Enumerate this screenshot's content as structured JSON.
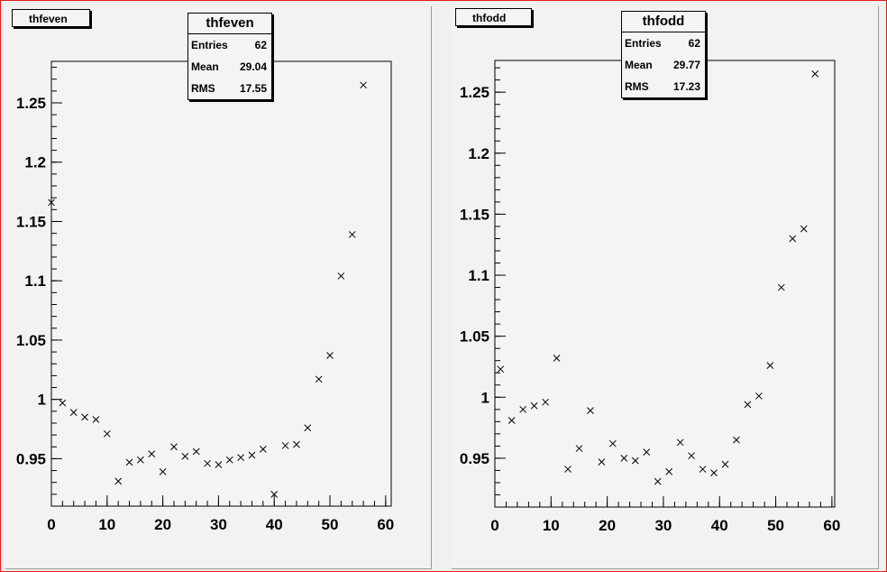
{
  "panels": [
    {
      "id": "thfeven",
      "title": "thfeven",
      "stats": {
        "name": "thfeven",
        "rows": [
          {
            "key": "Entries",
            "value": "62"
          },
          {
            "key": "Mean",
            "value": "29.04"
          },
          {
            "key": "RMS",
            "value": "17.55"
          }
        ]
      }
    },
    {
      "id": "thfodd",
      "title": "thfodd",
      "stats": {
        "name": "thfodd",
        "rows": [
          {
            "key": "Entries",
            "value": "62"
          },
          {
            "key": "Mean",
            "value": "29.77"
          },
          {
            "key": "RMS",
            "value": "17.23"
          }
        ]
      }
    }
  ],
  "chart_data": [
    {
      "type": "scatter",
      "title": "thfeven",
      "marker": "x",
      "xlim": [
        0,
        61
      ],
      "ylim": [
        0.91,
        1.285
      ],
      "xticks": [
        0,
        10,
        20,
        30,
        40,
        50,
        60
      ],
      "xtick_labels": [
        "0",
        "10",
        "20",
        "30",
        "40",
        "50",
        "60"
      ],
      "yticks": [
        0.95,
        1.0,
        1.05,
        1.1,
        1.15,
        1.2,
        1.25
      ],
      "ytick_labels": [
        "0.95",
        "1",
        "1.05",
        "1.1",
        "1.15",
        "1.2",
        "1.25"
      ],
      "grid": false,
      "x": [
        0,
        2,
        4,
        6,
        8,
        10,
        12,
        14,
        16,
        18,
        20,
        22,
        24,
        26,
        28,
        30,
        32,
        34,
        36,
        38,
        40,
        42,
        44,
        46,
        48,
        50,
        52,
        54,
        56
      ],
      "y": [
        1.166,
        0.997,
        0.989,
        0.985,
        0.983,
        0.971,
        0.931,
        0.947,
        0.949,
        0.954,
        0.939,
        0.96,
        0.952,
        0.956,
        0.946,
        0.945,
        0.949,
        0.951,
        0.953,
        0.958,
        0.92,
        0.961,
        0.962,
        0.976,
        1.017,
        1.037,
        1.104,
        1.139,
        1.265
      ]
    },
    {
      "type": "scatter",
      "title": "thfodd",
      "marker": "x",
      "xlim": [
        0,
        60.5
      ],
      "ylim": [
        0.91,
        1.276
      ],
      "xticks": [
        0,
        10,
        20,
        30,
        40,
        50,
        60
      ],
      "xtick_labels": [
        "0",
        "10",
        "20",
        "30",
        "40",
        "50",
        "60"
      ],
      "yticks": [
        0.95,
        1.0,
        1.05,
        1.1,
        1.15,
        1.2,
        1.25
      ],
      "ytick_labels": [
        "0.95",
        "1",
        "1.05",
        "1.1",
        "1.15",
        "1.2",
        "1.25"
      ],
      "grid": false,
      "x": [
        1,
        3,
        5,
        7,
        9,
        11,
        13,
        15,
        17,
        19,
        21,
        23,
        25,
        27,
        29,
        31,
        33,
        35,
        37,
        39,
        41,
        43,
        45,
        47,
        49,
        51,
        53,
        55,
        57
      ],
      "y": [
        1.023,
        0.981,
        0.99,
        0.993,
        0.996,
        1.032,
        0.941,
        0.958,
        0.989,
        0.947,
        0.962,
        0.95,
        0.948,
        0.955,
        0.931,
        0.939,
        0.963,
        0.952,
        0.941,
        0.938,
        0.945,
        0.965,
        0.994,
        1.001,
        1.026,
        1.09,
        1.13,
        1.138,
        1.265
      ]
    }
  ]
}
